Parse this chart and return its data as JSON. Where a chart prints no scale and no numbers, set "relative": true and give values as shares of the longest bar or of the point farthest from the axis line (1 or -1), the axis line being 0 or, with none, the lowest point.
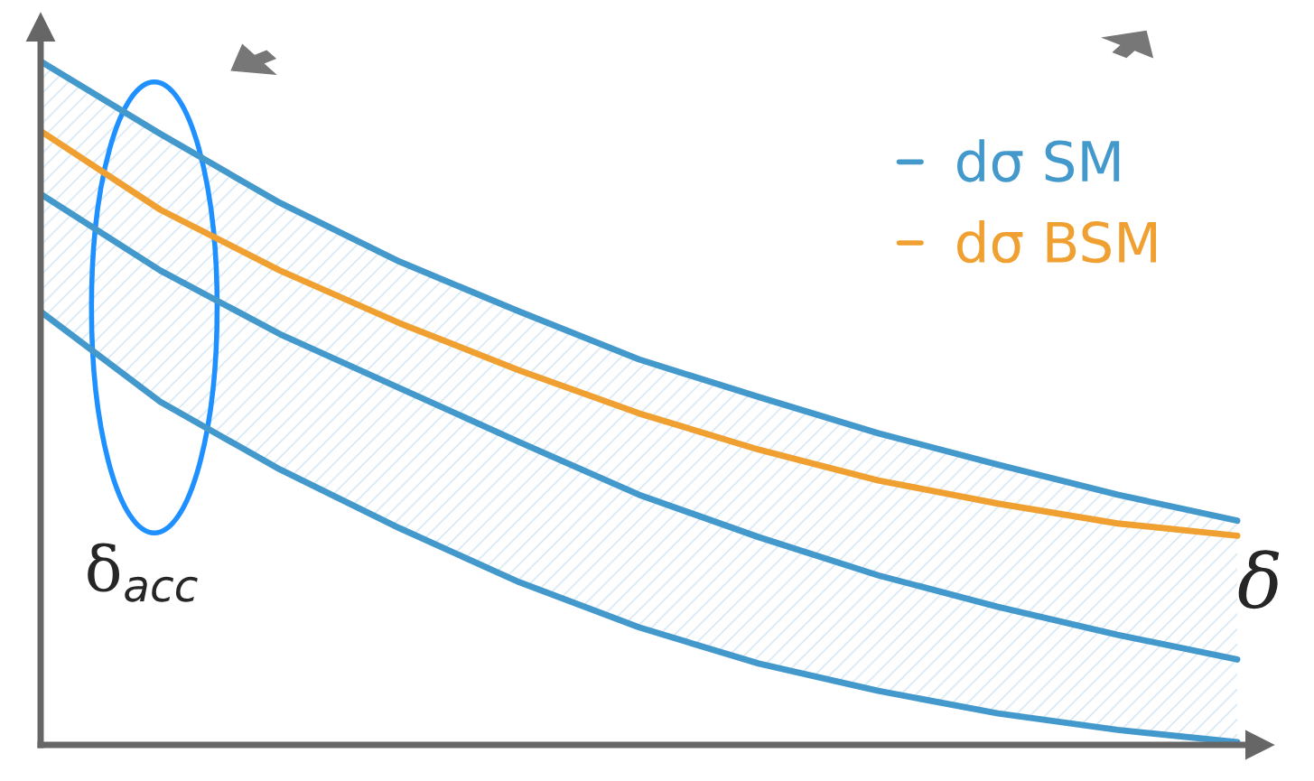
{
  "chart_data": {
    "type": "line",
    "relative": true,
    "xlabel": "δ",
    "categories": [
      null,
      null,
      null,
      null,
      null,
      null,
      null,
      null,
      null,
      null,
      null
    ],
    "series": [
      {
        "name": "dσ SM",
        "color": "#4499cc",
        "values": [
          0.806,
          0.694,
          0.601,
          0.522,
          0.443,
          0.366,
          0.304,
          0.248,
          0.202,
          0.161,
          0.125
        ],
        "lower": [
          0.634,
          0.502,
          0.403,
          0.317,
          0.238,
          0.172,
          0.119,
          0.079,
          0.046,
          0.022,
          0.004
        ],
        "upper": [
          1.0,
          0.894,
          0.793,
          0.707,
          0.634,
          0.564,
          0.509,
          0.456,
          0.41,
          0.366,
          0.328
        ]
      },
      {
        "color": "#4499cc",
        "values": [
          1.0,
          0.894,
          0.793,
          0.707,
          0.634,
          0.564,
          0.509,
          0.456,
          0.41,
          0.366,
          0.328
        ]
      },
      {
        "color": "#4499cc",
        "values": [
          0.634,
          0.502,
          0.403,
          0.317,
          0.238,
          0.172,
          0.119,
          0.079,
          0.046,
          0.022,
          0.004
        ]
      },
      {
        "name": "dσ BSM",
        "color": "#f0a030",
        "values": [
          0.898,
          0.783,
          0.694,
          0.617,
          0.548,
          0.485,
          0.432,
          0.387,
          0.353,
          0.324,
          0.306
        ]
      }
    ],
    "annotations": [
      "δ$_{acc}$"
    ],
    "legend": "right",
    "tick_labels": false,
    "grid": false
  }
}
